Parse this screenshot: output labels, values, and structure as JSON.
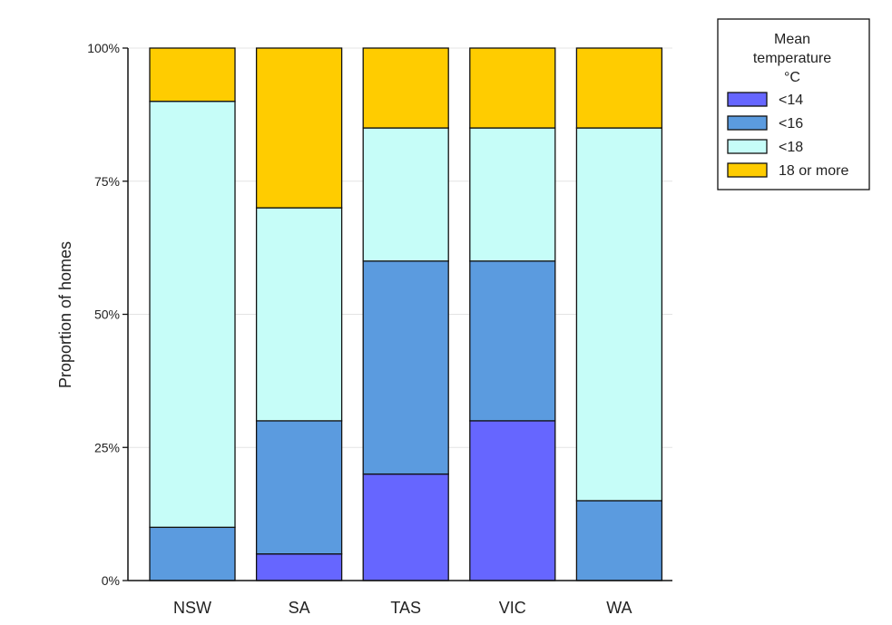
{
  "chart_data": {
    "type": "bar",
    "stacked": true,
    "categories": [
      "NSW",
      "SA",
      "TAS",
      "VIC",
      "WA"
    ],
    "series": [
      {
        "name": "<14",
        "color": "#6666ff",
        "values": [
          0,
          5,
          20,
          30,
          0
        ]
      },
      {
        "name": "<16",
        "color": "#5b9bdf",
        "values": [
          10,
          25,
          40,
          30,
          15
        ]
      },
      {
        "name": "<18",
        "color": "#c6fdf8",
        "values": [
          80,
          40,
          25,
          25,
          70
        ]
      },
      {
        "name": "18 or more",
        "color": "#ffcc00",
        "values": [
          10,
          30,
          15,
          15,
          15
        ]
      }
    ],
    "ylabel": "Proportion of homes",
    "xlabel": "",
    "ylim": [
      0,
      100
    ],
    "yticks": [
      "0%",
      "25%",
      "50%",
      "75%",
      "100%"
    ],
    "grid": "horizontal",
    "legend": {
      "title_lines": [
        "Mean",
        "temperature",
        "°C"
      ],
      "placement": "top-right, outside"
    }
  }
}
